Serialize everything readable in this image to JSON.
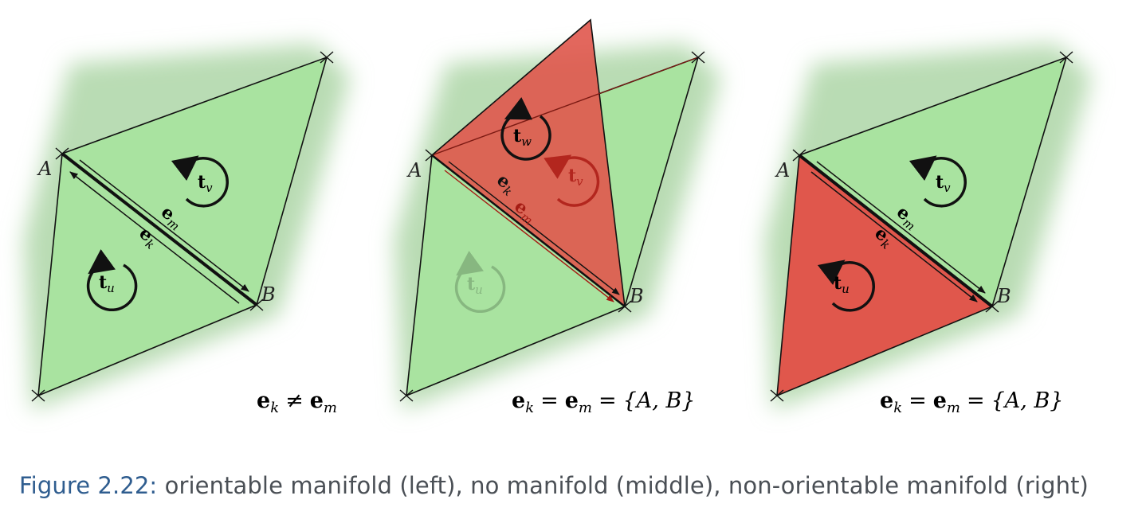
{
  "caption": {
    "label": "Figure 2.22:",
    "text": " orientable manifold (left), no manifold (middle), non-orientable manifold (right)"
  },
  "vertices": {
    "a": "A",
    "b": "B"
  },
  "panels": [
    {
      "name": "left",
      "equation": "e_k ≠ e_m"
    },
    {
      "name": "middle",
      "equation": "e_k = e_m = {A, B}"
    },
    {
      "name": "right",
      "equation": "e_k = e_m = {A, B}"
    }
  ],
  "symbols": {
    "e": "e",
    "k": "k",
    "m": "m",
    "t": "t",
    "u": "u",
    "v": "v",
    "w": "w",
    "neq": "≠",
    "eq": "=",
    "set": "{A, B}"
  },
  "colors": {
    "green_fill": "#a9e3a0",
    "green_shadow": "#b9dcb4",
    "red_fill": "#e0574c",
    "line": "#111111",
    "caption_label": "#2f5d8f",
    "caption_text": "#4a4f55"
  }
}
